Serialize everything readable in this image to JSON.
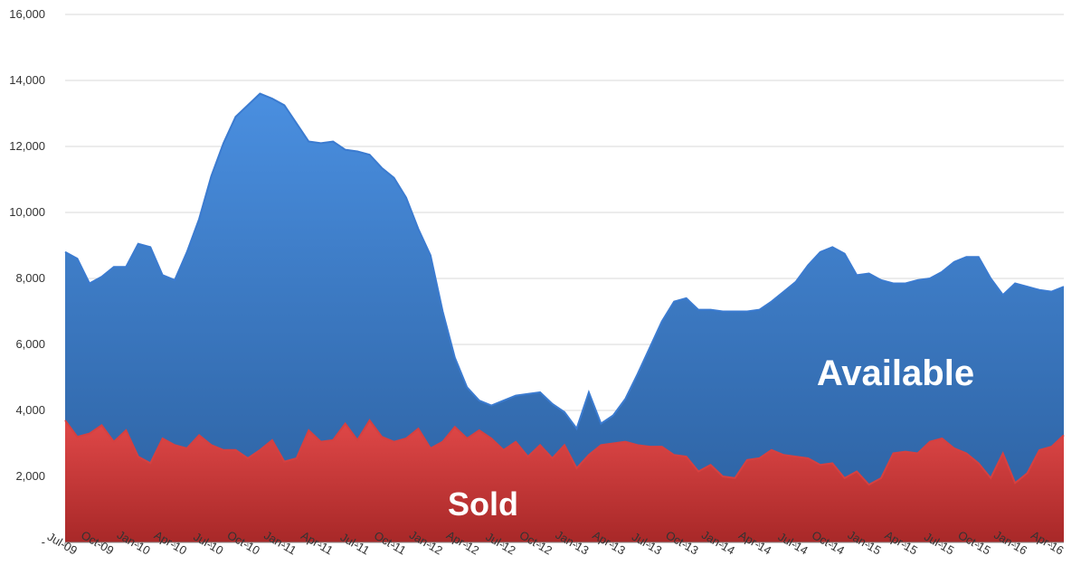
{
  "chart_data": {
    "type": "area",
    "categories": [
      "Jul-09",
      null,
      null,
      "Oct-09",
      null,
      null,
      "Jan-10",
      null,
      null,
      "Apr-10",
      null,
      null,
      "Jul-10",
      null,
      null,
      "Oct-10",
      null,
      null,
      "Jan-11",
      null,
      null,
      "Apr-11",
      null,
      null,
      "Jul-11",
      null,
      null,
      "Oct-11",
      null,
      null,
      "Jan-12",
      null,
      null,
      "Apr-12",
      null,
      null,
      "Jul-12",
      null,
      null,
      "Oct-12",
      null,
      null,
      "Jan-13",
      null,
      null,
      "Apr-13",
      null,
      null,
      "Jul-13",
      null,
      null,
      "Oct-13",
      null,
      null,
      "Jan-14",
      null,
      null,
      "Apr-14",
      null,
      null,
      "Jul-14",
      null,
      null,
      "Oct-14",
      null,
      null,
      "Jan-15",
      null,
      null,
      "Apr-15",
      null,
      null,
      "Jul-15",
      null,
      null,
      "Oct-15",
      null,
      null,
      "Jan-16",
      null,
      null,
      "Apr-16",
      null
    ],
    "series": [
      {
        "name": "Available",
        "color": "#3b7bd0",
        "values": [
          8800,
          8600,
          7850,
          8050,
          8350,
          8350,
          9050,
          8950,
          8100,
          7950,
          8800,
          9800,
          11100,
          12100,
          12900,
          13250,
          13600,
          13450,
          13250,
          12700,
          12150,
          12100,
          12150,
          11900,
          11850,
          11750,
          11350,
          11050,
          10450,
          9500,
          8700,
          7000,
          5600,
          4700,
          4300,
          4150,
          4300,
          4450,
          4500,
          4550,
          4200,
          3950,
          3450,
          4550,
          3600,
          3850,
          4350,
          5100,
          5900,
          6700,
          7300,
          7400,
          7050,
          7050,
          7000,
          7000,
          7000,
          7050,
          7300,
          7600,
          7900,
          8400,
          8800,
          8950,
          8750,
          8100,
          8150,
          7950,
          7850,
          7850,
          7950,
          8000,
          8200,
          8500,
          8650,
          8650,
          8000,
          7500,
          7850,
          7750,
          7650,
          7600,
          7750
        ]
      },
      {
        "name": "Sold",
        "color": "#d64040",
        "values": [
          3700,
          3200,
          3300,
          3550,
          3050,
          3400,
          2600,
          2400,
          3150,
          2950,
          2850,
          3250,
          2950,
          2800,
          2800,
          2550,
          2800,
          3100,
          2450,
          2550,
          3400,
          3050,
          3100,
          3600,
          3100,
          3700,
          3200,
          3050,
          3150,
          3450,
          2850,
          3050,
          3500,
          3150,
          3400,
          3150,
          2800,
          3050,
          2600,
          2950,
          2550,
          2950,
          2250,
          2650,
          2950,
          3000,
          3050,
          2950,
          2900,
          2900,
          2650,
          2600,
          2150,
          2350,
          2000,
          1950,
          2500,
          2550,
          2800,
          2650,
          2600,
          2550,
          2350,
          2400,
          1950,
          2150,
          1750,
          1950,
          2700,
          2750,
          2700,
          3050,
          3150,
          2850,
          2700,
          2400,
          1950,
          2700,
          1800,
          2100,
          2800,
          2900,
          3250
        ]
      }
    ],
    "ylim": [
      0,
      16000
    ],
    "yticks": [
      {
        "value": 0,
        "label": "-"
      },
      {
        "value": 2000,
        "label": "2,000"
      },
      {
        "value": 4000,
        "label": "4,000"
      },
      {
        "value": 6000,
        "label": "6,000"
      },
      {
        "value": 8000,
        "label": "8,000"
      },
      {
        "value": 10000,
        "label": "10,000"
      },
      {
        "value": 12000,
        "label": "12,000"
      },
      {
        "value": 14000,
        "label": "14,000"
      },
      {
        "value": 16000,
        "label": "16,000"
      }
    ],
    "grid": true
  }
}
